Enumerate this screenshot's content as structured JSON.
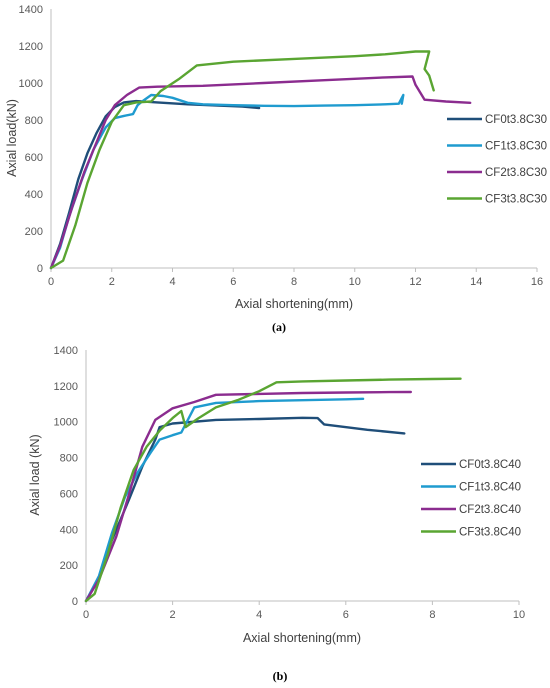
{
  "chart_data": [
    {
      "type": "line",
      "caption": "(a)",
      "xlabel": "Axial shortening(mm)",
      "ylabel": "Axial load(kN)",
      "xlim": [
        0,
        16
      ],
      "ylim": [
        0,
        1400
      ],
      "xticks": [
        "0",
        "2",
        "4",
        "6",
        "8",
        "10",
        "12",
        "14",
        "16"
      ],
      "yticks": [
        "0",
        "200",
        "400",
        "600",
        "800",
        "1000",
        "1200",
        "1400"
      ],
      "grid": false,
      "legend": "right",
      "series": [
        {
          "name": "CF0t3.8C30",
          "color": "#1f4e79",
          "points": [
            [
              0,
              0
            ],
            [
              0.3,
              130
            ],
            [
              0.6,
              300
            ],
            [
              0.9,
              480
            ],
            [
              1.2,
              620
            ],
            [
              1.5,
              730
            ],
            [
              1.8,
              820
            ],
            [
              2.1,
              870
            ],
            [
              2.4,
              895
            ],
            [
              2.8,
              902
            ],
            [
              3.5,
              895
            ],
            [
              4.5,
              885
            ],
            [
              5.5,
              878
            ],
            [
              6.3,
              873
            ],
            [
              6.85,
              865
            ]
          ]
        },
        {
          "name": "CF1t3.8C30",
          "color": "#1f9bcf",
          "points": [
            [
              0,
              0
            ],
            [
              0.3,
              110
            ],
            [
              0.6,
              280
            ],
            [
              1.0,
              470
            ],
            [
              1.4,
              640
            ],
            [
              1.8,
              760
            ],
            [
              2.1,
              810
            ],
            [
              2.4,
              822
            ],
            [
              2.7,
              832
            ],
            [
              2.85,
              880
            ],
            [
              3.0,
              900
            ],
            [
              3.3,
              935
            ],
            [
              3.7,
              930
            ],
            [
              4.0,
              920
            ],
            [
              4.5,
              893
            ],
            [
              5.0,
              885
            ],
            [
              6.0,
              880
            ],
            [
              7.0,
              877
            ],
            [
              8.0,
              875
            ],
            [
              9.0,
              878
            ],
            [
              10.0,
              880
            ],
            [
              11.0,
              885
            ],
            [
              11.45,
              888
            ],
            [
              11.6,
              935
            ],
            [
              11.55,
              888
            ]
          ]
        },
        {
          "name": "CF2t3.8C30",
          "color": "#8b2c8f",
          "points": [
            [
              0,
              0
            ],
            [
              0.3,
              120
            ],
            [
              0.7,
              330
            ],
            [
              1.1,
              520
            ],
            [
              1.5,
              680
            ],
            [
              1.8,
              800
            ],
            [
              2.1,
              880
            ],
            [
              2.5,
              935
            ],
            [
              2.9,
              975
            ],
            [
              3.5,
              980
            ],
            [
              5.0,
              985
            ],
            [
              7.0,
              1000
            ],
            [
              9.0,
              1015
            ],
            [
              11.0,
              1030
            ],
            [
              11.9,
              1035
            ],
            [
              12.0,
              990
            ],
            [
              12.3,
              910
            ],
            [
              13.0,
              900
            ],
            [
              13.8,
              893
            ]
          ]
        },
        {
          "name": "CF3t3.8C30",
          "color": "#5aa532",
          "points": [
            [
              0,
              0
            ],
            [
              0.4,
              40
            ],
            [
              0.8,
              230
            ],
            [
              1.2,
              460
            ],
            [
              1.6,
              640
            ],
            [
              2.0,
              790
            ],
            [
              2.4,
              880
            ],
            [
              2.8,
              895
            ],
            [
              3.3,
              900
            ],
            [
              3.6,
              955
            ],
            [
              4.2,
              1020
            ],
            [
              4.8,
              1095
            ],
            [
              6.0,
              1115
            ],
            [
              8.0,
              1130
            ],
            [
              10.0,
              1145
            ],
            [
              11.0,
              1155
            ],
            [
              12.0,
              1170
            ],
            [
              12.45,
              1170
            ],
            [
              12.3,
              1075
            ],
            [
              12.45,
              1040
            ],
            [
              12.6,
              960
            ]
          ]
        }
      ]
    },
    {
      "type": "line",
      "caption": "(b)",
      "xlabel": "Axial shortening(mm)",
      "ylabel": "Axial load (kN)",
      "xlim": [
        0,
        10
      ],
      "ylim": [
        0,
        1400
      ],
      "xticks": [
        "0",
        "2",
        "4",
        "6",
        "8",
        "10"
      ],
      "yticks": [
        "0",
        "200",
        "400",
        "600",
        "800",
        "1000",
        "1200",
        "1400"
      ],
      "grid": false,
      "legend": "right",
      "series": [
        {
          "name": "CF0t3.8C40",
          "color": "#1f4e79",
          "points": [
            [
              0,
              0
            ],
            [
              0.3,
              130
            ],
            [
              0.6,
              340
            ],
            [
              1.0,
              570
            ],
            [
              1.3,
              750
            ],
            [
              1.6,
              900
            ],
            [
              1.7,
              970
            ],
            [
              2.0,
              990
            ],
            [
              3.0,
              1010
            ],
            [
              4.0,
              1015
            ],
            [
              5.0,
              1022
            ],
            [
              5.35,
              1020
            ],
            [
              5.5,
              985
            ],
            [
              6.5,
              955
            ],
            [
              7.35,
              935
            ]
          ]
        },
        {
          "name": "CF1t3.8C40",
          "color": "#1f9bcf",
          "points": [
            [
              0,
              0
            ],
            [
              0.3,
              140
            ],
            [
              0.6,
              380
            ],
            [
              0.9,
              580
            ],
            [
              1.2,
              720
            ],
            [
              1.5,
              830
            ],
            [
              1.7,
              900
            ],
            [
              2.0,
              925
            ],
            [
              2.2,
              940
            ],
            [
              2.5,
              1080
            ],
            [
              3.0,
              1105
            ],
            [
              4.0,
              1115
            ],
            [
              5.0,
              1120
            ],
            [
              6.0,
              1125
            ],
            [
              6.4,
              1128
            ]
          ]
        },
        {
          "name": "CF2t3.8C40",
          "color": "#8b2c8f",
          "points": [
            [
              0,
              0
            ],
            [
              0.3,
              120
            ],
            [
              0.7,
              360
            ],
            [
              1.0,
              600
            ],
            [
              1.3,
              860
            ],
            [
              1.6,
              1010
            ],
            [
              2.0,
              1075
            ],
            [
              2.5,
              1110
            ],
            [
              3.0,
              1150
            ],
            [
              4.0,
              1155
            ],
            [
              5.0,
              1160
            ],
            [
              6.0,
              1163
            ],
            [
              7.0,
              1165
            ],
            [
              7.5,
              1166
            ]
          ]
        },
        {
          "name": "CF3t3.8C40",
          "color": "#5aa532",
          "points": [
            [
              0,
              0
            ],
            [
              0.2,
              40
            ],
            [
              0.5,
              260
            ],
            [
              0.8,
              520
            ],
            [
              1.1,
              730
            ],
            [
              1.4,
              860
            ],
            [
              1.7,
              950
            ],
            [
              2.0,
              1020
            ],
            [
              2.2,
              1060
            ],
            [
              2.3,
              970
            ],
            [
              2.6,
              1020
            ],
            [
              3.0,
              1080
            ],
            [
              3.5,
              1120
            ],
            [
              4.0,
              1170
            ],
            [
              4.4,
              1220
            ],
            [
              5.0,
              1225
            ],
            [
              6.0,
              1230
            ],
            [
              7.0,
              1235
            ],
            [
              8.0,
              1238
            ],
            [
              8.65,
              1240
            ]
          ]
        }
      ]
    }
  ]
}
